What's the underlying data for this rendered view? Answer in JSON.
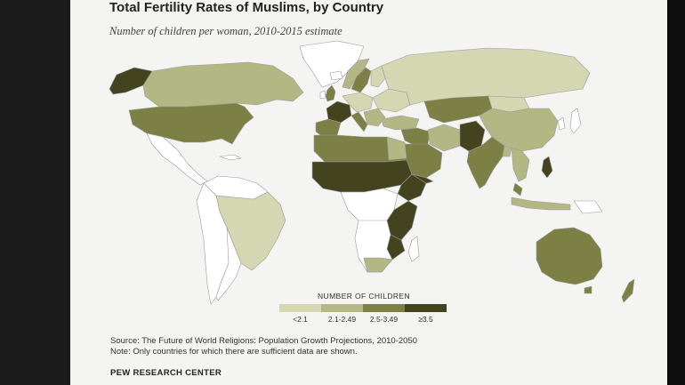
{
  "title": "Total Fertility Rates of Muslims, by Country",
  "subtitle": "Number of children per woman, 2010-2015 estimate",
  "legend": {
    "title": "NUMBER OF CHILDREN",
    "categories": [
      {
        "label": "<2.1",
        "color": "#d4d7b1"
      },
      {
        "label": "2.1-2.49",
        "color": "#b3b784"
      },
      {
        "label": "2.5-3.49",
        "color": "#7c8044"
      },
      {
        "label": "≥3.5",
        "color": "#434320"
      }
    ],
    "no_data_color": "#ffffff",
    "border_color": "#9b9b9b"
  },
  "source_line": "Source: The Future of World Religions: Population Growth Projections, 2010-2050",
  "note_line": "Note: Only countries for which there are sufficient data are shown.",
  "organization": "PEW RESEARCH CENTER"
}
